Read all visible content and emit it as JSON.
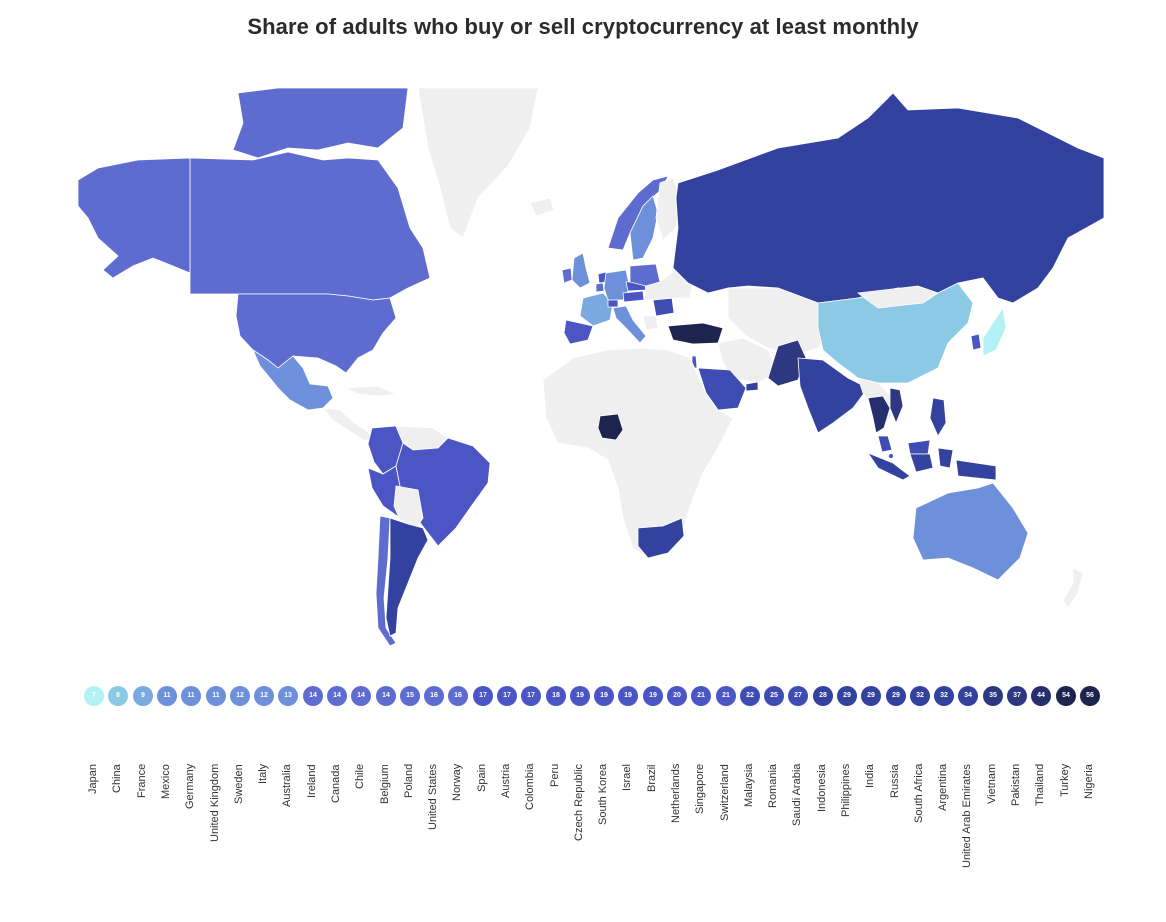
{
  "title": "Share of adults who buy or sell cryptocurrency at least monthly",
  "colors": {
    "no_data": "#efefef",
    "scale": [
      "#b3f1f5",
      "#8cc9e4",
      "#7aa9df",
      "#6e8fd9",
      "#5e6cd0",
      "#4b56c4",
      "#3f4cb3",
      "#34429f",
      "#2d3880",
      "#262f6d",
      "#1d254f"
    ]
  },
  "chart_data": {
    "type": "map",
    "title": "Share of adults who buy or sell cryptocurrency at least monthly",
    "unit": "%",
    "countries": [
      {
        "name": "Japan",
        "value": 7
      },
      {
        "name": "China",
        "value": 8
      },
      {
        "name": "France",
        "value": 9
      },
      {
        "name": "Mexico",
        "value": 11
      },
      {
        "name": "Germany",
        "value": 11
      },
      {
        "name": "United Kingdom",
        "value": 11
      },
      {
        "name": "Sweden",
        "value": 12
      },
      {
        "name": "Italy",
        "value": 12
      },
      {
        "name": "Australia",
        "value": 13
      },
      {
        "name": "Ireland",
        "value": 14
      },
      {
        "name": "Canada",
        "value": 14
      },
      {
        "name": "Chile",
        "value": 14
      },
      {
        "name": "Belgium",
        "value": 14
      },
      {
        "name": "Poland",
        "value": 15
      },
      {
        "name": "United States",
        "value": 16
      },
      {
        "name": "Norway",
        "value": 16
      },
      {
        "name": "Spain",
        "value": 17
      },
      {
        "name": "Austria",
        "value": 17
      },
      {
        "name": "Colombia",
        "value": 17
      },
      {
        "name": "Peru",
        "value": 18
      },
      {
        "name": "Czech Republic",
        "value": 19
      },
      {
        "name": "South Korea",
        "value": 19
      },
      {
        "name": "Israel",
        "value": 19
      },
      {
        "name": "Brazil",
        "value": 19
      },
      {
        "name": "Netherlands",
        "value": 20
      },
      {
        "name": "Singapore",
        "value": 21
      },
      {
        "name": "Switzerland",
        "value": 21
      },
      {
        "name": "Malaysia",
        "value": 22
      },
      {
        "name": "Romania",
        "value": 25
      },
      {
        "name": "Saudi Arabia",
        "value": 27
      },
      {
        "name": "Indonesia",
        "value": 28
      },
      {
        "name": "Philippines",
        "value": 29
      },
      {
        "name": "India",
        "value": 29
      },
      {
        "name": "Russia",
        "value": 29
      },
      {
        "name": "South Africa",
        "value": 32
      },
      {
        "name": "Argentina",
        "value": 32
      },
      {
        "name": "United Arab Emirates",
        "value": 34
      },
      {
        "name": "Vietnam",
        "value": 35
      },
      {
        "name": "Pakistan",
        "value": 37
      },
      {
        "name": "Thailand",
        "value": 44
      },
      {
        "name": "Turkey",
        "value": 54
      },
      {
        "name": "Nigeria",
        "value": 56
      }
    ]
  }
}
